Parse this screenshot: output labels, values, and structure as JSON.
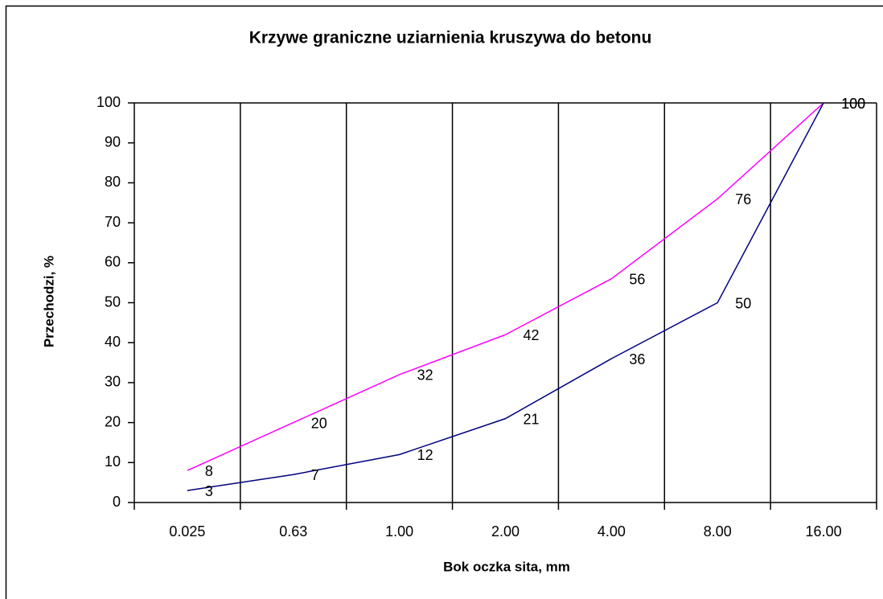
{
  "chart_data": {
    "type": "line",
    "title": "Krzywe graniczne uziarnienia kruszywa do betonu",
    "x_label": "Bok oczka sita, mm",
    "y_label": "Przechodzi, %",
    "categories": [
      "0.025",
      "0.63",
      "1.00",
      "2.00",
      "4.00",
      "8.00",
      "16.00"
    ],
    "series": [
      {
        "color": "#ff00ff",
        "values": [
          8,
          20,
          32,
          42,
          56,
          76,
          100
        ]
      },
      {
        "color": "#000080",
        "values": [
          3,
          7,
          12,
          21,
          36,
          50,
          100
        ]
      }
    ],
    "ylim": [
      0,
      100
    ],
    "yticks": [
      0,
      10,
      20,
      30,
      40,
      50,
      60,
      70,
      80,
      90,
      100
    ],
    "grid": true,
    "data_labels": true
  }
}
